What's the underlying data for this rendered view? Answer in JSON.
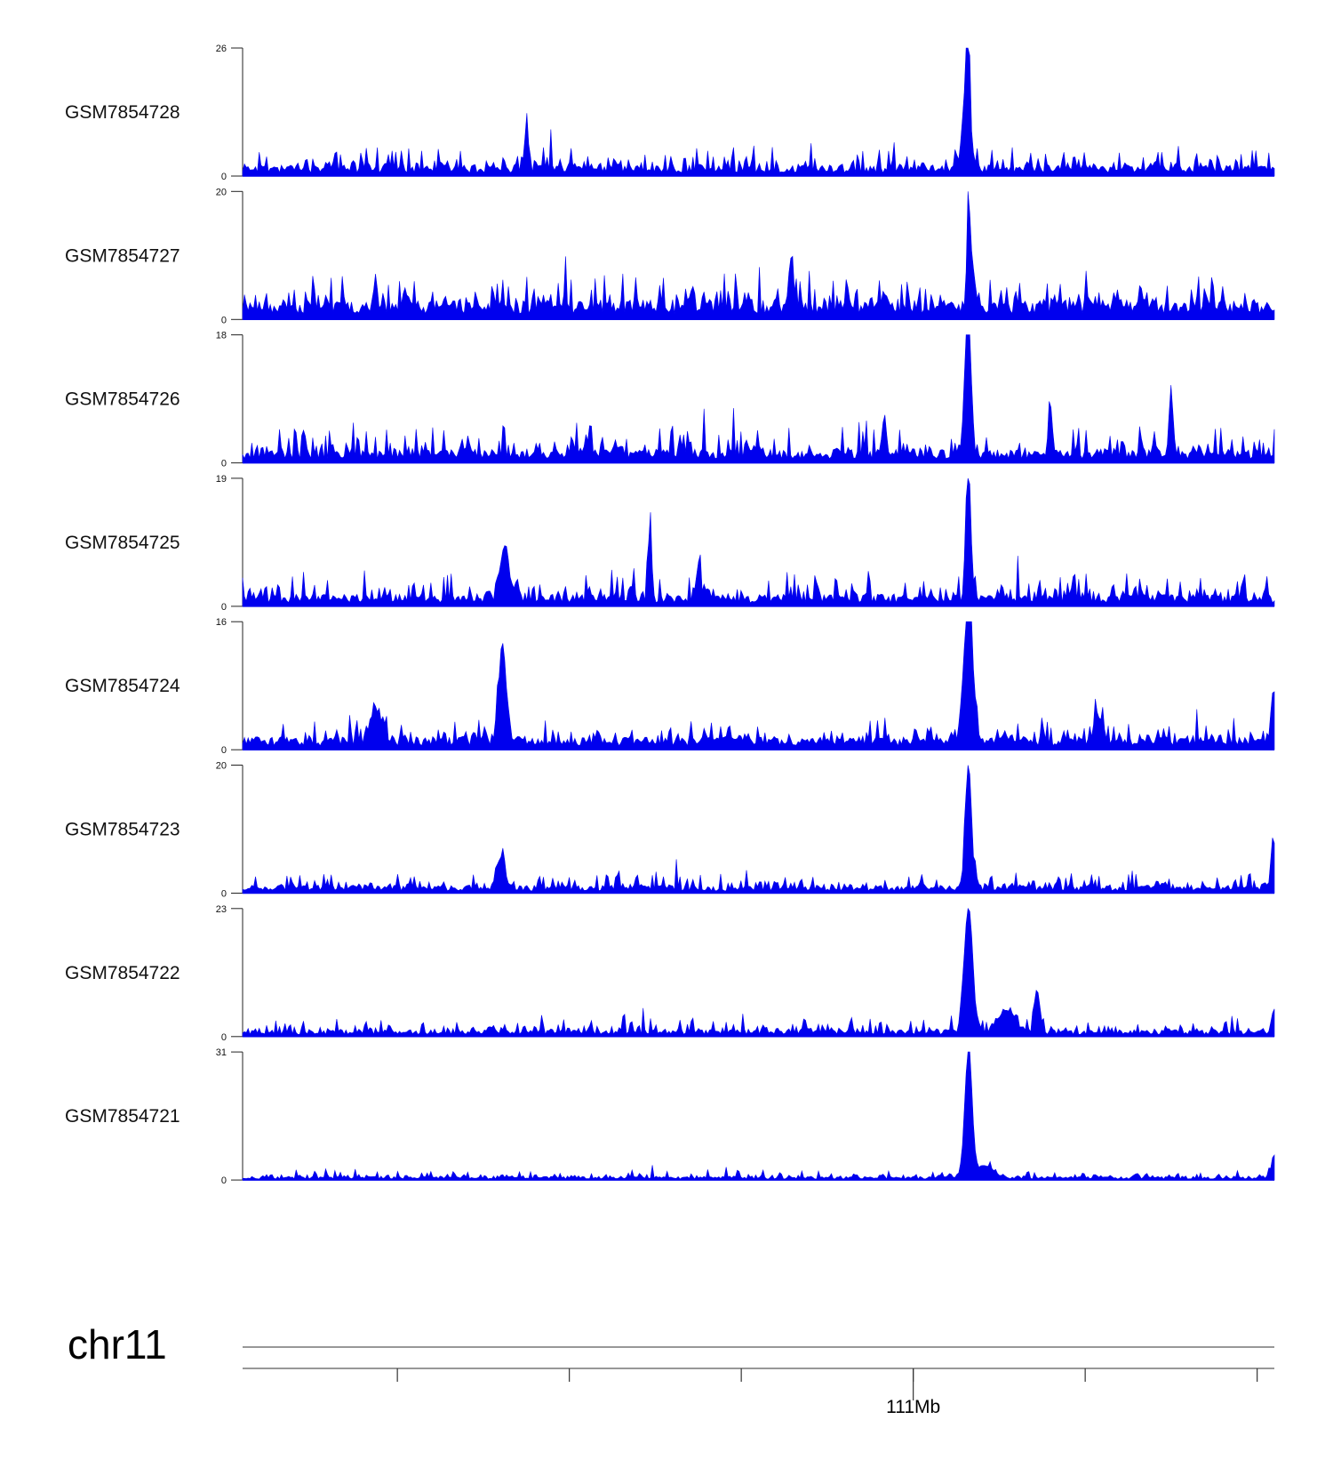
{
  "chart_data": {
    "type": "area",
    "color": "#0000ee",
    "region": {
      "chrom": "chr11",
      "start_mb": 109.0,
      "end_mb": 112.0
    },
    "tracks": [
      {
        "name": "GSM7854728",
        "ymax": 26,
        "ymin": 0,
        "baseline": 1.6,
        "noise": 4.5,
        "seed": 11,
        "peaks": [
          {
            "pos": 0.703,
            "height": 26,
            "width": 0.0018
          },
          {
            "pos": 0.701,
            "height": 12,
            "width": 0.004
          },
          {
            "pos": 0.275,
            "height": 8,
            "width": 0.002
          }
        ]
      },
      {
        "name": "GSM7854727",
        "ymax": 20,
        "ymin": 0,
        "baseline": 2.2,
        "noise": 5.0,
        "seed": 23,
        "peaks": [
          {
            "pos": 0.7035,
            "height": 20,
            "width": 0.0015
          },
          {
            "pos": 0.532,
            "height": 8,
            "width": 0.002
          },
          {
            "pos": 0.708,
            "height": 7,
            "width": 0.002
          }
        ]
      },
      {
        "name": "GSM7854726",
        "ymax": 18,
        "ymin": 0,
        "baseline": 1.4,
        "noise": 4.0,
        "seed": 37,
        "peaks": [
          {
            "pos": 0.7035,
            "height": 18,
            "width": 0.002
          },
          {
            "pos": 0.7005,
            "height": 9,
            "width": 0.0025
          },
          {
            "pos": 0.9,
            "height": 7,
            "width": 0.002
          },
          {
            "pos": 0.783,
            "height": 6,
            "width": 0.002
          },
          {
            "pos": 0.622,
            "height": 6,
            "width": 0.002
          }
        ]
      },
      {
        "name": "GSM7854725",
        "ymax": 19,
        "ymin": 0,
        "baseline": 1.3,
        "noise": 3.8,
        "seed": 41,
        "peaks": [
          {
            "pos": 0.7035,
            "height": 19,
            "width": 0.0025
          },
          {
            "pos": 0.395,
            "height": 13,
            "width": 0.0015
          },
          {
            "pos": 0.254,
            "height": 8,
            "width": 0.004
          },
          {
            "pos": 0.442,
            "height": 5,
            "width": 0.002
          }
        ]
      },
      {
        "name": "GSM7854724",
        "ymax": 16,
        "ymin": 0,
        "baseline": 1.2,
        "noise": 2.6,
        "seed": 53,
        "peaks": [
          {
            "pos": 0.7035,
            "height": 16,
            "width": 0.0045
          },
          {
            "pos": 0.252,
            "height": 11,
            "width": 0.004
          },
          {
            "pos": 0.13,
            "height": 4,
            "width": 0.006
          },
          {
            "pos": 0.999,
            "height": 6,
            "width": 0.002
          },
          {
            "pos": 0.83,
            "height": 3.5,
            "width": 0.004
          }
        ]
      },
      {
        "name": "GSM7854723",
        "ymax": 20,
        "ymin": 0,
        "baseline": 0.9,
        "noise": 2.5,
        "seed": 67,
        "peaks": [
          {
            "pos": 0.7035,
            "height": 20,
            "width": 0.003
          },
          {
            "pos": 0.25,
            "height": 5,
            "width": 0.004
          },
          {
            "pos": 0.999,
            "height": 8,
            "width": 0.002
          }
        ]
      },
      {
        "name": "GSM7854722",
        "ymax": 23,
        "ymin": 0,
        "baseline": 0.9,
        "noise": 2.6,
        "seed": 79,
        "peaks": [
          {
            "pos": 0.7035,
            "height": 23,
            "width": 0.004
          },
          {
            "pos": 0.77,
            "height": 8,
            "width": 0.0025
          },
          {
            "pos": 0.74,
            "height": 4,
            "width": 0.008
          },
          {
            "pos": 0.999,
            "height": 4,
            "width": 0.002
          }
        ]
      },
      {
        "name": "GSM7854721",
        "ymax": 31,
        "ymin": 0,
        "baseline": 0.6,
        "noise": 1.8,
        "seed": 97,
        "peaks": [
          {
            "pos": 0.7035,
            "height": 31,
            "width": 0.0035
          },
          {
            "pos": 0.72,
            "height": 3,
            "width": 0.008
          },
          {
            "pos": 0.999,
            "height": 5,
            "width": 0.002
          }
        ]
      }
    ],
    "axis": {
      "chrom_label": "chr11",
      "tick_positions_mb": [
        109.45,
        109.95,
        110.45,
        110.95,
        111.45,
        111.95
      ],
      "tick_label": "111Mb",
      "tick_label_at_mb": 110.95
    }
  }
}
